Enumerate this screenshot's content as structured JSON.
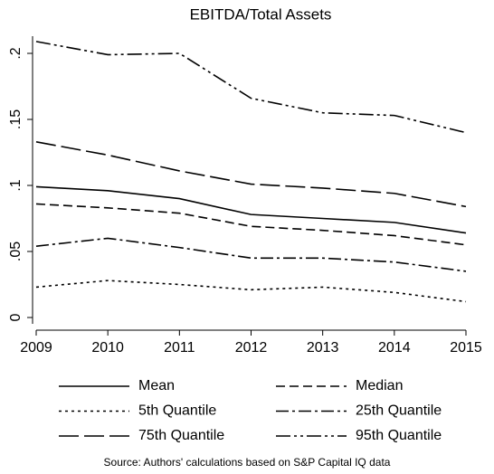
{
  "chart_data": {
    "type": "line",
    "title": "EBITDA/Total Assets",
    "x": [
      2009,
      2010,
      2011,
      2012,
      2013,
      2014,
      2015
    ],
    "xlim": [
      2009,
      2015
    ],
    "xticks": [
      2009,
      2010,
      2011,
      2012,
      2013,
      2014,
      2015
    ],
    "ylim": [
      0,
      0.2
    ],
    "yticks": [
      0,
      {
        "value": 0.05,
        "label": ".05"
      },
      {
        "value": 0.1,
        "label": ".1"
      },
      {
        "value": 0.15,
        "label": ".15"
      },
      {
        "value": 0.2,
        "label": ".2"
      }
    ],
    "series": [
      {
        "name": "Mean",
        "color": "#000000",
        "values": [
          0.099,
          0.096,
          0.09,
          0.078,
          0.075,
          0.072,
          0.064
        ]
      },
      {
        "name": "Median",
        "color": "#000000",
        "values": [
          0.086,
          0.083,
          0.079,
          0.069,
          0.066,
          0.062,
          0.055
        ]
      },
      {
        "name": "5th Quantile",
        "color": "#000000",
        "values": [
          0.023,
          0.028,
          0.025,
          0.021,
          0.023,
          0.019,
          0.012
        ]
      },
      {
        "name": "25th Quantile",
        "color": "#000000",
        "values": [
          0.054,
          0.06,
          0.053,
          0.045,
          0.045,
          0.042,
          0.035
        ]
      },
      {
        "name": "75th Quantile",
        "color": "#000000",
        "values": [
          0.133,
          0.123,
          0.111,
          0.101,
          0.098,
          0.094,
          0.084
        ]
      },
      {
        "name": "95th Quantile",
        "color": "#000000",
        "values": [
          0.209,
          0.199,
          0.2,
          0.166,
          0.155,
          0.153,
          0.14
        ]
      }
    ],
    "note": "Source: Authors' calculations based on S&P Capital IQ data"
  }
}
